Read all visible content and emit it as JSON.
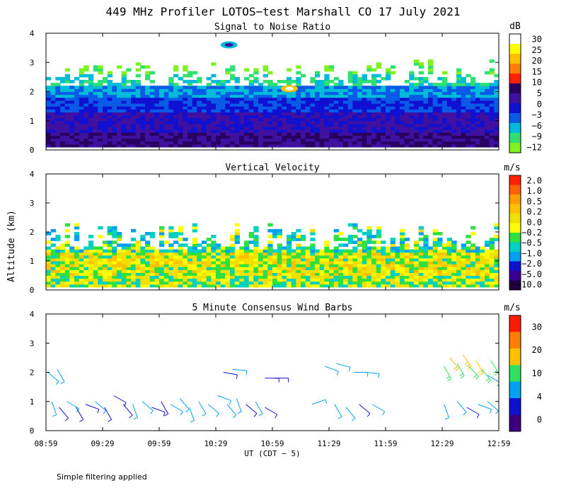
{
  "chart_data": {
    "type": "heatmap",
    "title": "449 MHz Profiler LOTOS−test Marshall CO 17 July 2021",
    "ylabel": "Altitude (km)",
    "xlabel": "UT  (CDT − 5)",
    "x_ticks": [
      "08:59",
      "09:29",
      "09:59",
      "10:29",
      "10:59",
      "11:29",
      "11:59",
      "12:29",
      "12:59"
    ],
    "ylim": [
      0,
      4
    ],
    "y_ticks": [
      "0",
      "1",
      "2",
      "3",
      "4"
    ],
    "footnote": "Simple filtering applied",
    "panels": [
      {
        "title": "Signal to Noise Ratio",
        "units": "dB",
        "colorbar_labels": [
          "30",
          "25",
          "20",
          "15",
          "10",
          "5",
          "0",
          "−3",
          "−6",
          "−9",
          "−12"
        ],
        "colorbar_colors": [
          "#ffffff",
          "#ffff00",
          "#ffc000",
          "#ff8000",
          "#ff2000",
          "#2a0060",
          "#4010a0",
          "#1010d0",
          "#0a5ae8",
          "#00bcd8",
          "#30e070",
          "#80f020"
        ],
        "bands": [
          {
            "y0": 0.1,
            "y1": 0.6,
            "value": 5
          },
          {
            "y0": 0.6,
            "y1": 1.3,
            "value": 0
          },
          {
            "y0": 1.3,
            "y1": 1.8,
            "value": -3
          },
          {
            "y0": 1.8,
            "y1": 2.2,
            "value": -6
          },
          {
            "y0": 2.2,
            "y1": 2.6,
            "value": -9
          },
          {
            "y0": 2.6,
            "y1": 3.1,
            "value": -12
          }
        ],
        "features": [
          {
            "x": "11:08",
            "y": 2.1,
            "value": 20,
            "label": "strong echo near 2 km"
          },
          {
            "x": "10:36",
            "y": 3.6,
            "value": -9,
            "label": "isolated echo near 3.6 km"
          }
        ]
      },
      {
        "title": "Vertical Velocity",
        "units": "m/s",
        "colorbar_labels": [
          "2.0",
          "1.0",
          "0.5",
          "0.2",
          "0.0",
          "−0.2",
          "−0.5",
          "−1.0",
          "−2.0",
          "−5.0",
          "−10.0"
        ],
        "colorbar_colors": [
          "#ff2000",
          "#ff6000",
          "#ff9c00",
          "#ffc000",
          "#f0e000",
          "#ffff00",
          "#30e040",
          "#00d0c0",
          "#00a0f0",
          "#1010d0",
          "#3a0090",
          "#200040"
        ],
        "bands": [
          {
            "y0": 0.1,
            "y1": 0.5,
            "value": 0.0
          },
          {
            "y0": 0.5,
            "y1": 1.3,
            "value": 0.2
          },
          {
            "y0": 1.3,
            "y1": 2.3,
            "value": -0.2
          }
        ]
      },
      {
        "title": "5 Minute Consensus Wind Barbs",
        "units": "m/s",
        "colorbar_labels": [
          "30",
          "20",
          "10",
          "4",
          "0"
        ],
        "colorbar_colors": [
          "#ff1a00",
          "#ff8000",
          "#ffc000",
          "#30e060",
          "#00a0f0",
          "#1010d0",
          "#3a0080"
        ],
        "barbs": [
          {
            "x": "09:00",
            "y": 2.0,
            "dir": 130,
            "speed": 6
          },
          {
            "x": "09:05",
            "y": 2.1,
            "dir": 150,
            "speed": 7
          },
          {
            "x": "09:02",
            "y": 1.0,
            "dir": 160,
            "speed": 5
          },
          {
            "x": "09:06",
            "y": 0.8,
            "dir": 140,
            "speed": 3
          },
          {
            "x": "09:10",
            "y": 1.0,
            "dir": 120,
            "speed": 4
          },
          {
            "x": "09:15",
            "y": 0.8,
            "dir": 150,
            "speed": 3
          },
          {
            "x": "09:20",
            "y": 0.9,
            "dir": 110,
            "speed": 2
          },
          {
            "x": "09:25",
            "y": 1.0,
            "dir": 130,
            "speed": 4
          },
          {
            "x": "09:30",
            "y": 0.8,
            "dir": 150,
            "speed": 3
          },
          {
            "x": "09:35",
            "y": 1.2,
            "dir": 120,
            "speed": 2
          },
          {
            "x": "09:40",
            "y": 0.9,
            "dir": 140,
            "speed": 3
          },
          {
            "x": "09:45",
            "y": 0.9,
            "dir": 160,
            "speed": 4
          },
          {
            "x": "09:50",
            "y": 1.0,
            "dir": 130,
            "speed": 5
          },
          {
            "x": "09:55",
            "y": 0.8,
            "dir": 110,
            "speed": 2
          },
          {
            "x": "10:00",
            "y": 1.0,
            "dir": 150,
            "speed": 3
          },
          {
            "x": "10:05",
            "y": 0.9,
            "dir": 120,
            "speed": 4
          },
          {
            "x": "10:10",
            "y": 1.1,
            "dir": 140,
            "speed": 6
          },
          {
            "x": "10:15",
            "y": 0.8,
            "dir": 160,
            "speed": 5
          },
          {
            "x": "10:20",
            "y": 1.0,
            "dir": 150,
            "speed": 7
          },
          {
            "x": "10:25",
            "y": 0.9,
            "dir": 130,
            "speed": 6
          },
          {
            "x": "10:30",
            "y": 1.2,
            "dir": 110,
            "speed": 5
          },
          {
            "x": "10:35",
            "y": 0.9,
            "dir": 140,
            "speed": 4
          },
          {
            "x": "10:40",
            "y": 1.1,
            "dir": 160,
            "speed": 6
          },
          {
            "x": "10:45",
            "y": 0.9,
            "dir": 130,
            "speed": 3
          },
          {
            "x": "10:50",
            "y": 1.0,
            "dir": 150,
            "speed": 4
          },
          {
            "x": "10:55",
            "y": 0.8,
            "dir": 120,
            "speed": 3
          },
          {
            "x": "10:33",
            "y": 2.0,
            "dir": 100,
            "speed": 3
          },
          {
            "x": "10:38",
            "y": 2.1,
            "dir": 95,
            "speed": 4
          },
          {
            "x": "10:55",
            "y": 1.8,
            "dir": 90,
            "speed": 2
          },
          {
            "x": "11:00",
            "y": 1.8,
            "dir": 90,
            "speed": 2
          },
          {
            "x": "11:20",
            "y": 0.9,
            "dir": 70,
            "speed": 6
          },
          {
            "x": "11:27",
            "y": 2.2,
            "dir": 110,
            "speed": 4
          },
          {
            "x": "11:33",
            "y": 2.3,
            "dir": 105,
            "speed": 5
          },
          {
            "x": "11:32",
            "y": 0.9,
            "dir": 150,
            "speed": 4
          },
          {
            "x": "11:38",
            "y": 0.8,
            "dir": 140,
            "speed": 6
          },
          {
            "x": "11:42",
            "y": 2.0,
            "dir": 90,
            "speed": 6
          },
          {
            "x": "11:48",
            "y": 2.0,
            "dir": 95,
            "speed": 7
          },
          {
            "x": "11:45",
            "y": 0.9,
            "dir": 130,
            "speed": 3
          },
          {
            "x": "11:52",
            "y": 0.9,
            "dir": 120,
            "speed": 4
          },
          {
            "x": "12:30",
            "y": 0.9,
            "dir": 160,
            "speed": 5
          },
          {
            "x": "12:37",
            "y": 1.0,
            "dir": 140,
            "speed": 4
          },
          {
            "x": "12:42",
            "y": 0.8,
            "dir": 120,
            "speed": 3
          },
          {
            "x": "12:48",
            "y": 0.9,
            "dir": 110,
            "speed": 4
          },
          {
            "x": "12:53",
            "y": 1.0,
            "dir": 130,
            "speed": 5
          },
          {
            "x": "12:30",
            "y": 2.2,
            "dir": 150,
            "speed": 10
          },
          {
            "x": "12:33",
            "y": 2.5,
            "dir": 140,
            "speed": 12
          },
          {
            "x": "12:37",
            "y": 2.3,
            "dir": 150,
            "speed": 11
          },
          {
            "x": "12:40",
            "y": 2.6,
            "dir": 145,
            "speed": 13
          },
          {
            "x": "12:43",
            "y": 2.2,
            "dir": 135,
            "speed": 9
          },
          {
            "x": "12:47",
            "y": 2.4,
            "dir": 150,
            "speed": 12
          },
          {
            "x": "12:50",
            "y": 2.1,
            "dir": 140,
            "speed": 8
          },
          {
            "x": "12:53",
            "y": 1.9,
            "dir": 120,
            "speed": 5
          },
          {
            "x": "12:55",
            "y": 2.4,
            "dir": 150,
            "speed": 11
          }
        ]
      }
    ]
  }
}
